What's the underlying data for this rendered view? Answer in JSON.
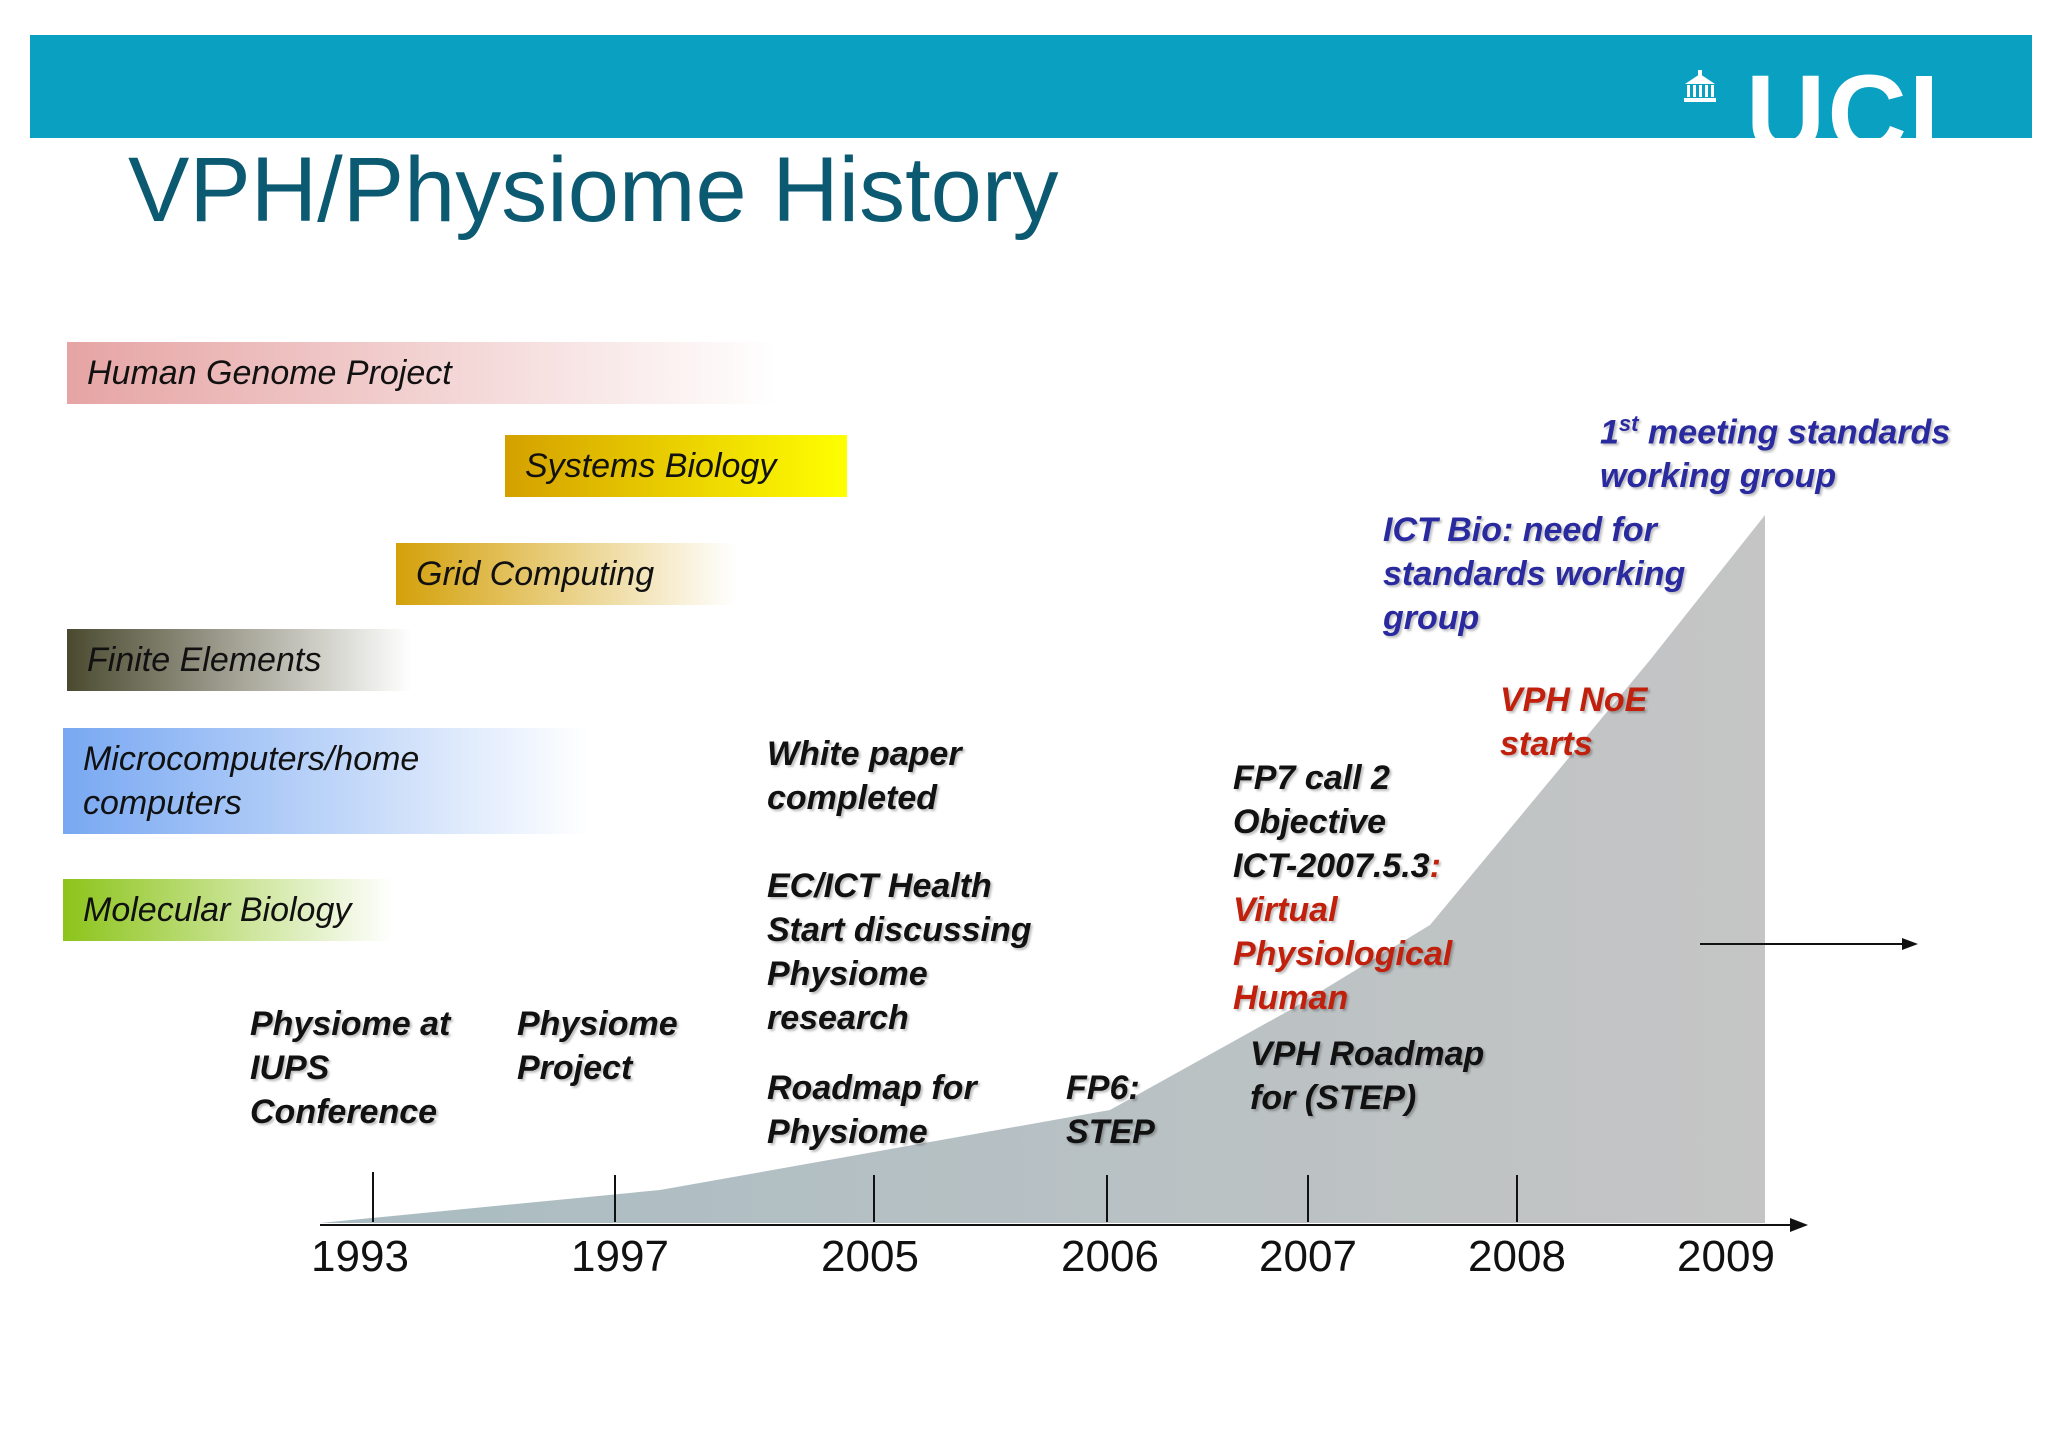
{
  "header": {
    "title": "VPH/Physiome History",
    "logo_text": "UCL",
    "bar_color": "#0aa0c1"
  },
  "bands": [
    {
      "label": "Human Genome Project",
      "color": "#e8a5a5"
    },
    {
      "label": "Systems Biology",
      "color": "#d9a400"
    },
    {
      "label": "Grid Computing",
      "color": "#d4a10a"
    },
    {
      "label": "Finite Elements",
      "color": "#4b4a30"
    },
    {
      "label": "Microcomputers/home computers",
      "line1": "Microcomputers/home",
      "line2": "computers",
      "color": "#7aaaf2"
    },
    {
      "label": "Molecular Biology",
      "color": "#8cc41a"
    }
  ],
  "timeline": {
    "years": [
      "1993",
      "1997",
      "2005",
      "2006",
      "2007",
      "2008",
      "2009"
    ]
  },
  "events": {
    "iups": [
      "Physiome at",
      "IUPS",
      "Conference"
    ],
    "physiome_project": [
      "Physiome",
      "Project"
    ],
    "white_paper": [
      "White paper",
      "completed"
    ],
    "ec_ict": [
      "EC/ICT Health",
      "Start discussing",
      "Physiome",
      "research"
    ],
    "roadmap": [
      "Roadmap for",
      "Physiome"
    ],
    "fp6": [
      "FP6:",
      "STEP"
    ],
    "fp7": {
      "lines": [
        "FP7 call 2",
        "Objective"
      ],
      "code": "ICT-2007.5.3",
      "colon": ":",
      "red_lines": [
        "Virtual",
        "Physiological",
        "Human"
      ]
    },
    "vph_roadmap": [
      "VPH Roadmap",
      "for (STEP)"
    ],
    "vph_noe": [
      "VPH NoE",
      "starts"
    ],
    "ict_bio": [
      "ICT Bio: need for",
      "standards working",
      "group"
    ],
    "first_meeting": {
      "num": "1",
      "sup": "st",
      "rest": " meeting standards",
      "line2": "working group"
    }
  },
  "colors": {
    "blue_text": "#2a2aa0",
    "red_text": "#c0200c",
    "area_start": "#a9bcc2",
    "area_end": "#c5c5c5"
  }
}
